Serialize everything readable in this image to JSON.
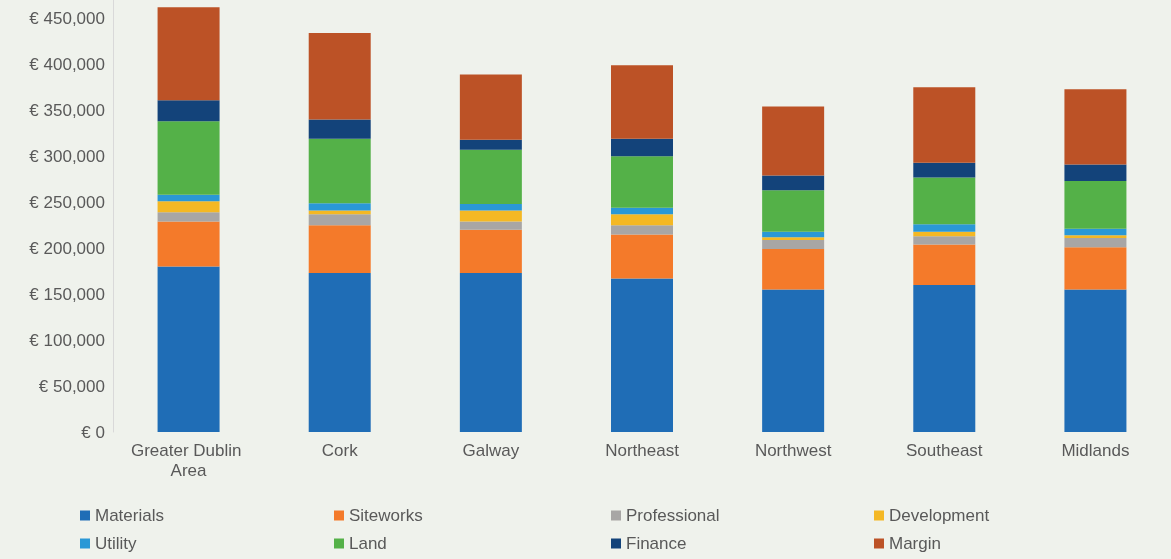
{
  "chart_data": {
    "type": "bar",
    "stacked": true,
    "categories": [
      "Greater Dublin Area",
      "Cork",
      "Galway",
      "Northeast",
      "Northwest",
      "Southeast",
      "Midlands"
    ],
    "series": [
      {
        "name": "Materials",
        "color": "#1f6db6",
        "values": [
          180000,
          173000,
          173000,
          167000,
          155000,
          160000,
          155000
        ]
      },
      {
        "name": "Siteworks",
        "color": "#f47a2a",
        "values": [
          49000,
          52000,
          47000,
          48000,
          44000,
          44000,
          46000
        ]
      },
      {
        "name": "Professional",
        "color": "#a8a6a5",
        "values": [
          10000,
          12000,
          9000,
          10000,
          10000,
          9000,
          10000
        ]
      },
      {
        "name": "Development",
        "color": "#f4b824",
        "values": [
          12000,
          4000,
          12000,
          12000,
          3000,
          5000,
          3000
        ]
      },
      {
        "name": "Utility",
        "color": "#2a98d6",
        "values": [
          7000,
          8000,
          7000,
          7000,
          6000,
          8000,
          7000
        ]
      },
      {
        "name": "Land",
        "color": "#54b148",
        "values": [
          80000,
          70000,
          59000,
          56000,
          45000,
          51000,
          52000
        ]
      },
      {
        "name": "Finance",
        "color": "#13437a",
        "values": [
          23000,
          21000,
          11000,
          19000,
          16000,
          16000,
          18000
        ]
      },
      {
        "name": "Margin",
        "color": "#bc5226",
        "values": [
          101000,
          94000,
          71000,
          80000,
          75000,
          82000,
          82000
        ]
      }
    ],
    "ylim": [
      0,
      470000
    ],
    "yticks": [
      {
        "value": 0,
        "label": "€ 0"
      },
      {
        "value": 50000,
        "label": "€ 50,000"
      },
      {
        "value": 100000,
        "label": "€ 100,000"
      },
      {
        "value": 150000,
        "label": "€ 150,000"
      },
      {
        "value": 200000,
        "label": "€ 200,000"
      },
      {
        "value": 250000,
        "label": "€ 250,000"
      },
      {
        "value": 300000,
        "label": "€ 300,000"
      },
      {
        "value": 350000,
        "label": "€ 350,000"
      },
      {
        "value": 400000,
        "label": "€ 400,000"
      },
      {
        "value": 450000,
        "label": "€ 450,000"
      }
    ],
    "grid": false,
    "legend": "bottom"
  }
}
